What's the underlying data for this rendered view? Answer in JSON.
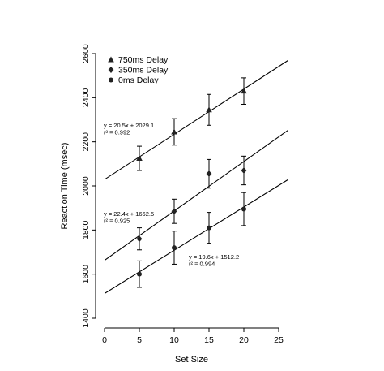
{
  "chart_data": {
    "type": "scatter",
    "title": "",
    "xlabel": "Set Size",
    "ylabel": "Reaction Time (msec)",
    "xlim": [
      0,
      25
    ],
    "ylim": [
      1400,
      2600
    ],
    "x_ticks": [
      0,
      5,
      10,
      15,
      20,
      25
    ],
    "y_ticks": [
      1400,
      1600,
      1800,
      2000,
      2200,
      2400,
      2600
    ],
    "grid": false,
    "legend_position": "top-left",
    "series": [
      {
        "name": "750ms Delay",
        "marker": "triangle",
        "x": [
          5,
          10,
          15,
          20
        ],
        "y": [
          2125,
          2245,
          2345,
          2430
        ],
        "error": [
          55,
          60,
          70,
          60
        ],
        "fit": {
          "slope": 20.5,
          "intercept": 2029.1
        },
        "equation": "y = 20.5x + 2029.1",
        "r2": "r² = 0.992"
      },
      {
        "name": "350ms Delay",
        "marker": "diamond",
        "x": [
          5,
          10,
          15,
          20
        ],
        "y": [
          1760,
          1885,
          2055,
          2070
        ],
        "error": [
          50,
          55,
          65,
          65
        ],
        "fit": {
          "slope": 22.4,
          "intercept": 1662.5
        },
        "equation": "y = 22.4x + 1662.5",
        "r2": "r² = 0.925"
      },
      {
        "name": "0ms Delay",
        "marker": "circle",
        "x": [
          5,
          10,
          15,
          20
        ],
        "y": [
          1600,
          1720,
          1810,
          1895
        ],
        "error": [
          60,
          75,
          70,
          75
        ],
        "fit": {
          "slope": 19.6,
          "intercept": 1512.2
        },
        "equation": "y = 19.6x + 1512.2",
        "r2": "r² = 0.994"
      }
    ]
  }
}
